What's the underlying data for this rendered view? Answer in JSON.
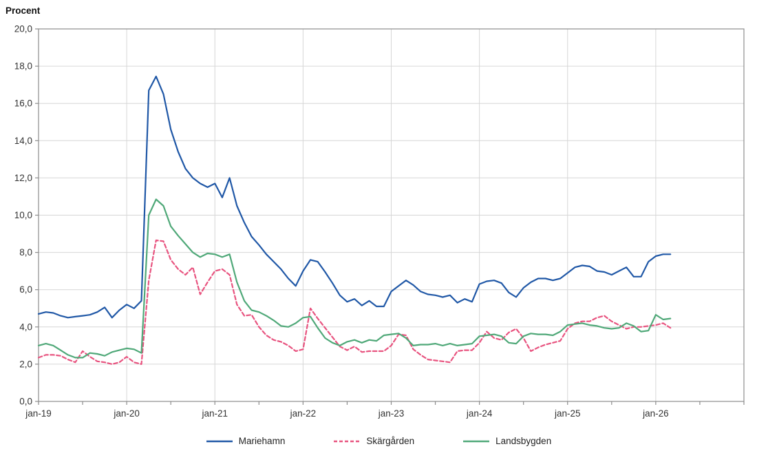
{
  "title": "Procent",
  "colors": {
    "mariehamn": "#1F57A6",
    "skargarden": "#E8537F",
    "landsbygden": "#4FA878",
    "grid": "#D6D6D6",
    "axis": "#8C8C8C",
    "label_text": "#333333"
  },
  "chart_data": {
    "type": "line",
    "title": "Procent",
    "xlabel": "",
    "ylabel": "Procent",
    "x_frequency": "monthly",
    "x_start": "jan-19",
    "x_end": "mar-26",
    "x_axis_total_months": 96,
    "x_minor_tick_every_months": 6,
    "x_tick_labels": [
      "jan-19",
      "jan-20",
      "jan-21",
      "jan-22",
      "jan-23",
      "jan-24",
      "jan-25",
      "jan-26"
    ],
    "x_tick_month_indices": [
      0,
      12,
      24,
      36,
      48,
      60,
      72,
      84
    ],
    "ylim": [
      0,
      20
    ],
    "y_tick_step": 2,
    "y_tick_labels": [
      "0,0",
      "2,0",
      "4,0",
      "6,0",
      "8,0",
      "10,0",
      "12,0",
      "14,0",
      "16,0",
      "18,0",
      "20,0"
    ],
    "grid": true,
    "legend_position": "bottom",
    "series": [
      {
        "name": "Mariehamn",
        "key": "mariehamn",
        "color": "#1F57A6",
        "style": "solid",
        "values": [
          4.7,
          4.8,
          4.75,
          4.6,
          4.5,
          4.55,
          4.6,
          4.65,
          4.8,
          5.05,
          4.5,
          4.9,
          5.2,
          5.0,
          5.4,
          16.7,
          17.45,
          16.5,
          14.6,
          13.4,
          12.5,
          12.0,
          11.7,
          11.5,
          11.7,
          10.95,
          12.0,
          10.5,
          9.6,
          8.85,
          8.4,
          7.9,
          7.5,
          7.1,
          6.6,
          6.2,
          7.0,
          7.6,
          7.5,
          6.95,
          6.35,
          5.7,
          5.35,
          5.5,
          5.15,
          5.4,
          5.1,
          5.1,
          5.9,
          6.2,
          6.5,
          6.25,
          5.9,
          5.75,
          5.7,
          5.6,
          5.7,
          5.3,
          5.5,
          5.35,
          6.3,
          6.45,
          6.5,
          6.35,
          5.85,
          5.6,
          6.1,
          6.4,
          6.6,
          6.6,
          6.5,
          6.6,
          6.9,
          7.2,
          7.3,
          7.25,
          7.0,
          6.95,
          6.8,
          7.0,
          7.2,
          6.7,
          6.7,
          7.5,
          7.8,
          7.9,
          7.9
        ]
      },
      {
        "name": "Skärgården",
        "key": "skargarden",
        "color": "#E8537F",
        "style": "dashed",
        "values": [
          2.35,
          2.5,
          2.5,
          2.45,
          2.25,
          2.1,
          2.7,
          2.4,
          2.15,
          2.1,
          2.0,
          2.1,
          2.4,
          2.1,
          2.0,
          6.5,
          8.65,
          8.6,
          7.6,
          7.1,
          6.8,
          7.2,
          5.75,
          6.4,
          7.0,
          7.1,
          6.8,
          5.2,
          4.6,
          4.65,
          4.0,
          3.55,
          3.3,
          3.2,
          3.0,
          2.7,
          2.8,
          5.0,
          4.45,
          3.95,
          3.45,
          2.95,
          2.75,
          2.95,
          2.65,
          2.7,
          2.7,
          2.7,
          3.0,
          3.6,
          3.55,
          2.8,
          2.5,
          2.25,
          2.2,
          2.15,
          2.1,
          2.7,
          2.75,
          2.75,
          3.15,
          3.75,
          3.4,
          3.3,
          3.7,
          3.9,
          3.4,
          2.7,
          2.9,
          3.05,
          3.15,
          3.25,
          3.9,
          4.2,
          4.3,
          4.3,
          4.5,
          4.6,
          4.3,
          4.1,
          3.9,
          4.0,
          4.0,
          4.05,
          4.1,
          4.2,
          3.95
        ]
      },
      {
        "name": "Landsbygden",
        "key": "landsbygden",
        "color": "#4FA878",
        "style": "solid",
        "values": [
          3.0,
          3.1,
          3.0,
          2.75,
          2.5,
          2.35,
          2.35,
          2.6,
          2.55,
          2.45,
          2.65,
          2.75,
          2.85,
          2.8,
          2.6,
          10.0,
          10.85,
          10.5,
          9.4,
          8.9,
          8.45,
          8.0,
          7.75,
          7.95,
          7.9,
          7.75,
          7.9,
          6.4,
          5.4,
          4.9,
          4.8,
          4.6,
          4.35,
          4.05,
          4.0,
          4.2,
          4.5,
          4.55,
          3.95,
          3.4,
          3.15,
          3.0,
          3.2,
          3.3,
          3.15,
          3.3,
          3.25,
          3.55,
          3.6,
          3.65,
          3.4,
          3.0,
          3.05,
          3.05,
          3.1,
          3.0,
          3.1,
          3.0,
          3.05,
          3.1,
          3.5,
          3.55,
          3.6,
          3.5,
          3.15,
          3.1,
          3.5,
          3.65,
          3.6,
          3.6,
          3.55,
          3.75,
          4.1,
          4.15,
          4.2,
          4.1,
          4.05,
          3.95,
          3.9,
          3.95,
          4.2,
          4.05,
          3.75,
          3.8,
          4.65,
          4.4,
          4.45
        ]
      }
    ]
  },
  "legend": {
    "items": [
      {
        "label": "Mariehamn"
      },
      {
        "label": "Skärgården"
      },
      {
        "label": "Landsbygden"
      }
    ]
  }
}
